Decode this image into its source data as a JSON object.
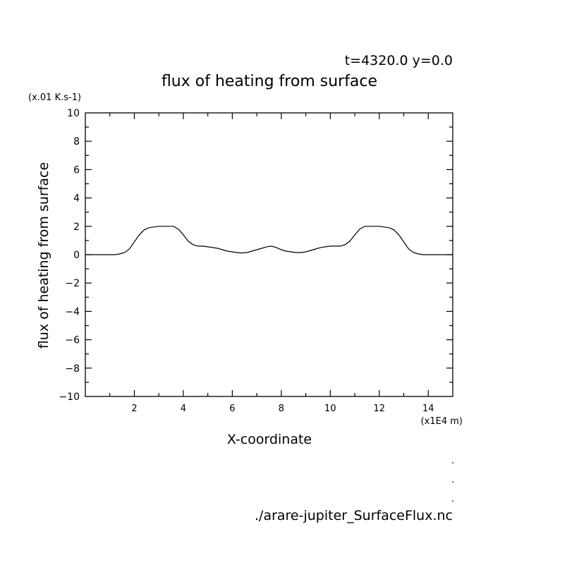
{
  "header": {
    "time_label": "t=4320.0 y=0.0",
    "title": "flux of heating from surface"
  },
  "footer": {
    "dots": [
      ".",
      ".",
      "."
    ],
    "filename": "./arare-jupiter_SurfaceFlux.nc"
  },
  "chart_data": {
    "type": "line",
    "title": "flux of heating from surface",
    "xlabel": "X-coordinate",
    "ylabel": "flux of heating from surface",
    "x_unit": "(x1E4 m)",
    "y_unit": "(x.01 K.s-1)",
    "xlim": [
      0,
      15
    ],
    "ylim": [
      -10,
      10
    ],
    "x_ticks": [
      "2",
      "4",
      "6",
      "8",
      "10",
      "12",
      "14"
    ],
    "y_ticks": [
      "10",
      "8",
      "6",
      "4",
      "2",
      "0",
      "−2",
      "−4",
      "−6",
      "−8",
      "−10"
    ],
    "grid": false,
    "line_color": "#000000",
    "series": [
      {
        "x": [
          0.0,
          1.2,
          1.4,
          1.6,
          1.8,
          2.0,
          2.2,
          2.4,
          2.6,
          2.8,
          3.0,
          3.2,
          3.4,
          3.6,
          3.8,
          4.0,
          4.2,
          4.4,
          4.6,
          4.8,
          5.0,
          5.2,
          5.4,
          5.6,
          5.8,
          6.0,
          6.2,
          6.4,
          6.6,
          6.8,
          7.0,
          7.2,
          7.4,
          7.6,
          7.8,
          8.0,
          8.2,
          8.4,
          8.6,
          8.8,
          9.0,
          9.2,
          9.4,
          9.6,
          9.8,
          10.0,
          10.2,
          10.4,
          10.6,
          10.8,
          11.0,
          11.2,
          11.4,
          11.6,
          11.8,
          12.0,
          12.2,
          12.4,
          12.6,
          12.8,
          13.0,
          13.2,
          13.4,
          13.6,
          13.8,
          14.0,
          15.0
        ],
        "values": [
          0.0,
          0.0,
          0.05,
          0.15,
          0.4,
          0.9,
          1.4,
          1.75,
          1.9,
          1.95,
          2.0,
          2.0,
          2.0,
          2.0,
          1.8,
          1.4,
          0.95,
          0.7,
          0.6,
          0.6,
          0.55,
          0.5,
          0.45,
          0.35,
          0.25,
          0.2,
          0.15,
          0.12,
          0.15,
          0.25,
          0.35,
          0.45,
          0.55,
          0.6,
          0.5,
          0.35,
          0.25,
          0.2,
          0.15,
          0.15,
          0.2,
          0.3,
          0.4,
          0.5,
          0.55,
          0.6,
          0.6,
          0.6,
          0.7,
          0.95,
          1.4,
          1.8,
          2.0,
          2.0,
          2.0,
          2.0,
          1.95,
          1.9,
          1.75,
          1.4,
          0.9,
          0.4,
          0.15,
          0.05,
          0.0,
          0.0,
          0.0
        ]
      }
    ]
  }
}
